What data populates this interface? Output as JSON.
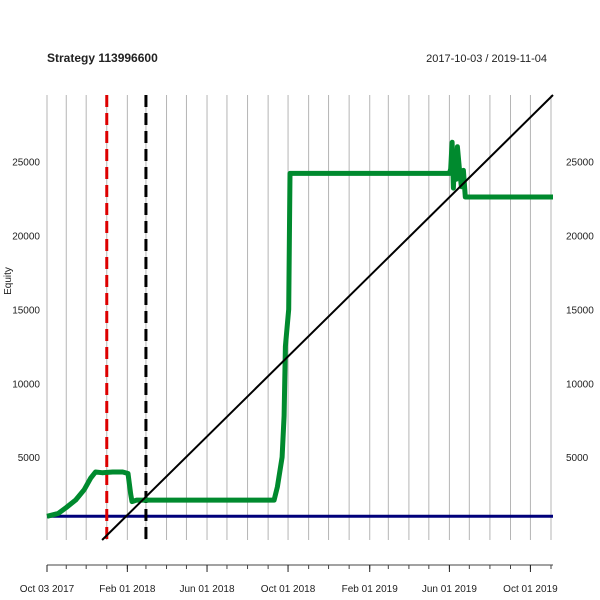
{
  "chart_data": {
    "type": "line",
    "title": "Strategy 113996600",
    "date_range": "2017-10-03 / 2019-11-04",
    "ylabel": "Equity",
    "xlabel": "",
    "x_start": "2017-10-03",
    "x_end": "2019-11-04",
    "ylim": [
      -600,
      29500
    ],
    "yticks": [
      5000,
      10000,
      15000,
      20000,
      25000
    ],
    "xtick_labels": [
      {
        "date": "2017-10-03",
        "label": "Oct 03 2017"
      },
      {
        "date": "2018-02-01",
        "label": "Feb 01 2018"
      },
      {
        "date": "2018-06-01",
        "label": "Jun 01 2018"
      },
      {
        "date": "2018-10-01",
        "label": "Oct 01 2018"
      },
      {
        "date": "2019-02-01",
        "label": "Feb 01 2019"
      },
      {
        "date": "2019-06-01",
        "label": "Jun 01 2019"
      },
      {
        "date": "2019-10-01",
        "label": "Oct 01 2019"
      }
    ],
    "grid": true,
    "colors": {
      "equity": "#008a2e",
      "trend": "#000000",
      "baseline": "#00007a",
      "red_marker": "#dd0000",
      "black_marker": "#000000",
      "grid": "#b5b5b5"
    },
    "series": [
      {
        "role": "equity",
        "points": [
          [
            "2017-10-03",
            1000
          ],
          [
            "2017-10-20",
            1200
          ],
          [
            "2017-11-01",
            1600
          ],
          [
            "2017-11-15",
            2100
          ],
          [
            "2017-11-28",
            2800
          ],
          [
            "2017-12-08",
            3600
          ],
          [
            "2017-12-15",
            4000
          ],
          [
            "2017-12-25",
            3950
          ],
          [
            "2018-01-10",
            4000
          ],
          [
            "2018-01-25",
            4000
          ],
          [
            "2018-02-02",
            3900
          ],
          [
            "2018-02-06",
            2500
          ],
          [
            "2018-02-08",
            2000
          ],
          [
            "2018-02-15",
            2100
          ],
          [
            "2018-03-15",
            2100
          ],
          [
            "2018-06-01",
            2100
          ],
          [
            "2018-09-10",
            2100
          ],
          [
            "2018-09-15",
            3000
          ],
          [
            "2018-09-22",
            5000
          ],
          [
            "2018-09-25",
            7800
          ],
          [
            "2018-09-27",
            12500
          ],
          [
            "2018-10-02",
            15000
          ],
          [
            "2018-10-04",
            24200
          ],
          [
            "2019-06-01",
            24200
          ],
          [
            "2019-06-03",
            24500
          ],
          [
            "2019-06-05",
            26300
          ],
          [
            "2019-06-07",
            23200
          ],
          [
            "2019-06-09",
            25600
          ],
          [
            "2019-06-11",
            23800
          ],
          [
            "2019-06-13",
            26000
          ],
          [
            "2019-06-16",
            24500
          ],
          [
            "2019-06-19",
            23300
          ],
          [
            "2019-06-22",
            24400
          ],
          [
            "2019-06-25",
            22600
          ],
          [
            "2019-07-10",
            22600
          ],
          [
            "2019-11-04",
            22600
          ]
        ]
      },
      {
        "role": "trend",
        "points": [
          [
            "2017-12-25",
            -600
          ],
          [
            "2019-11-04",
            29500
          ]
        ]
      },
      {
        "role": "baseline",
        "points": [
          [
            "2017-10-03",
            1000
          ],
          [
            "2019-11-04",
            1000
          ]
        ]
      }
    ],
    "vertical_markers": [
      {
        "date": "2018-01-01",
        "color": "#dd0000"
      },
      {
        "date": "2018-03-01",
        "color": "#000000"
      }
    ]
  }
}
